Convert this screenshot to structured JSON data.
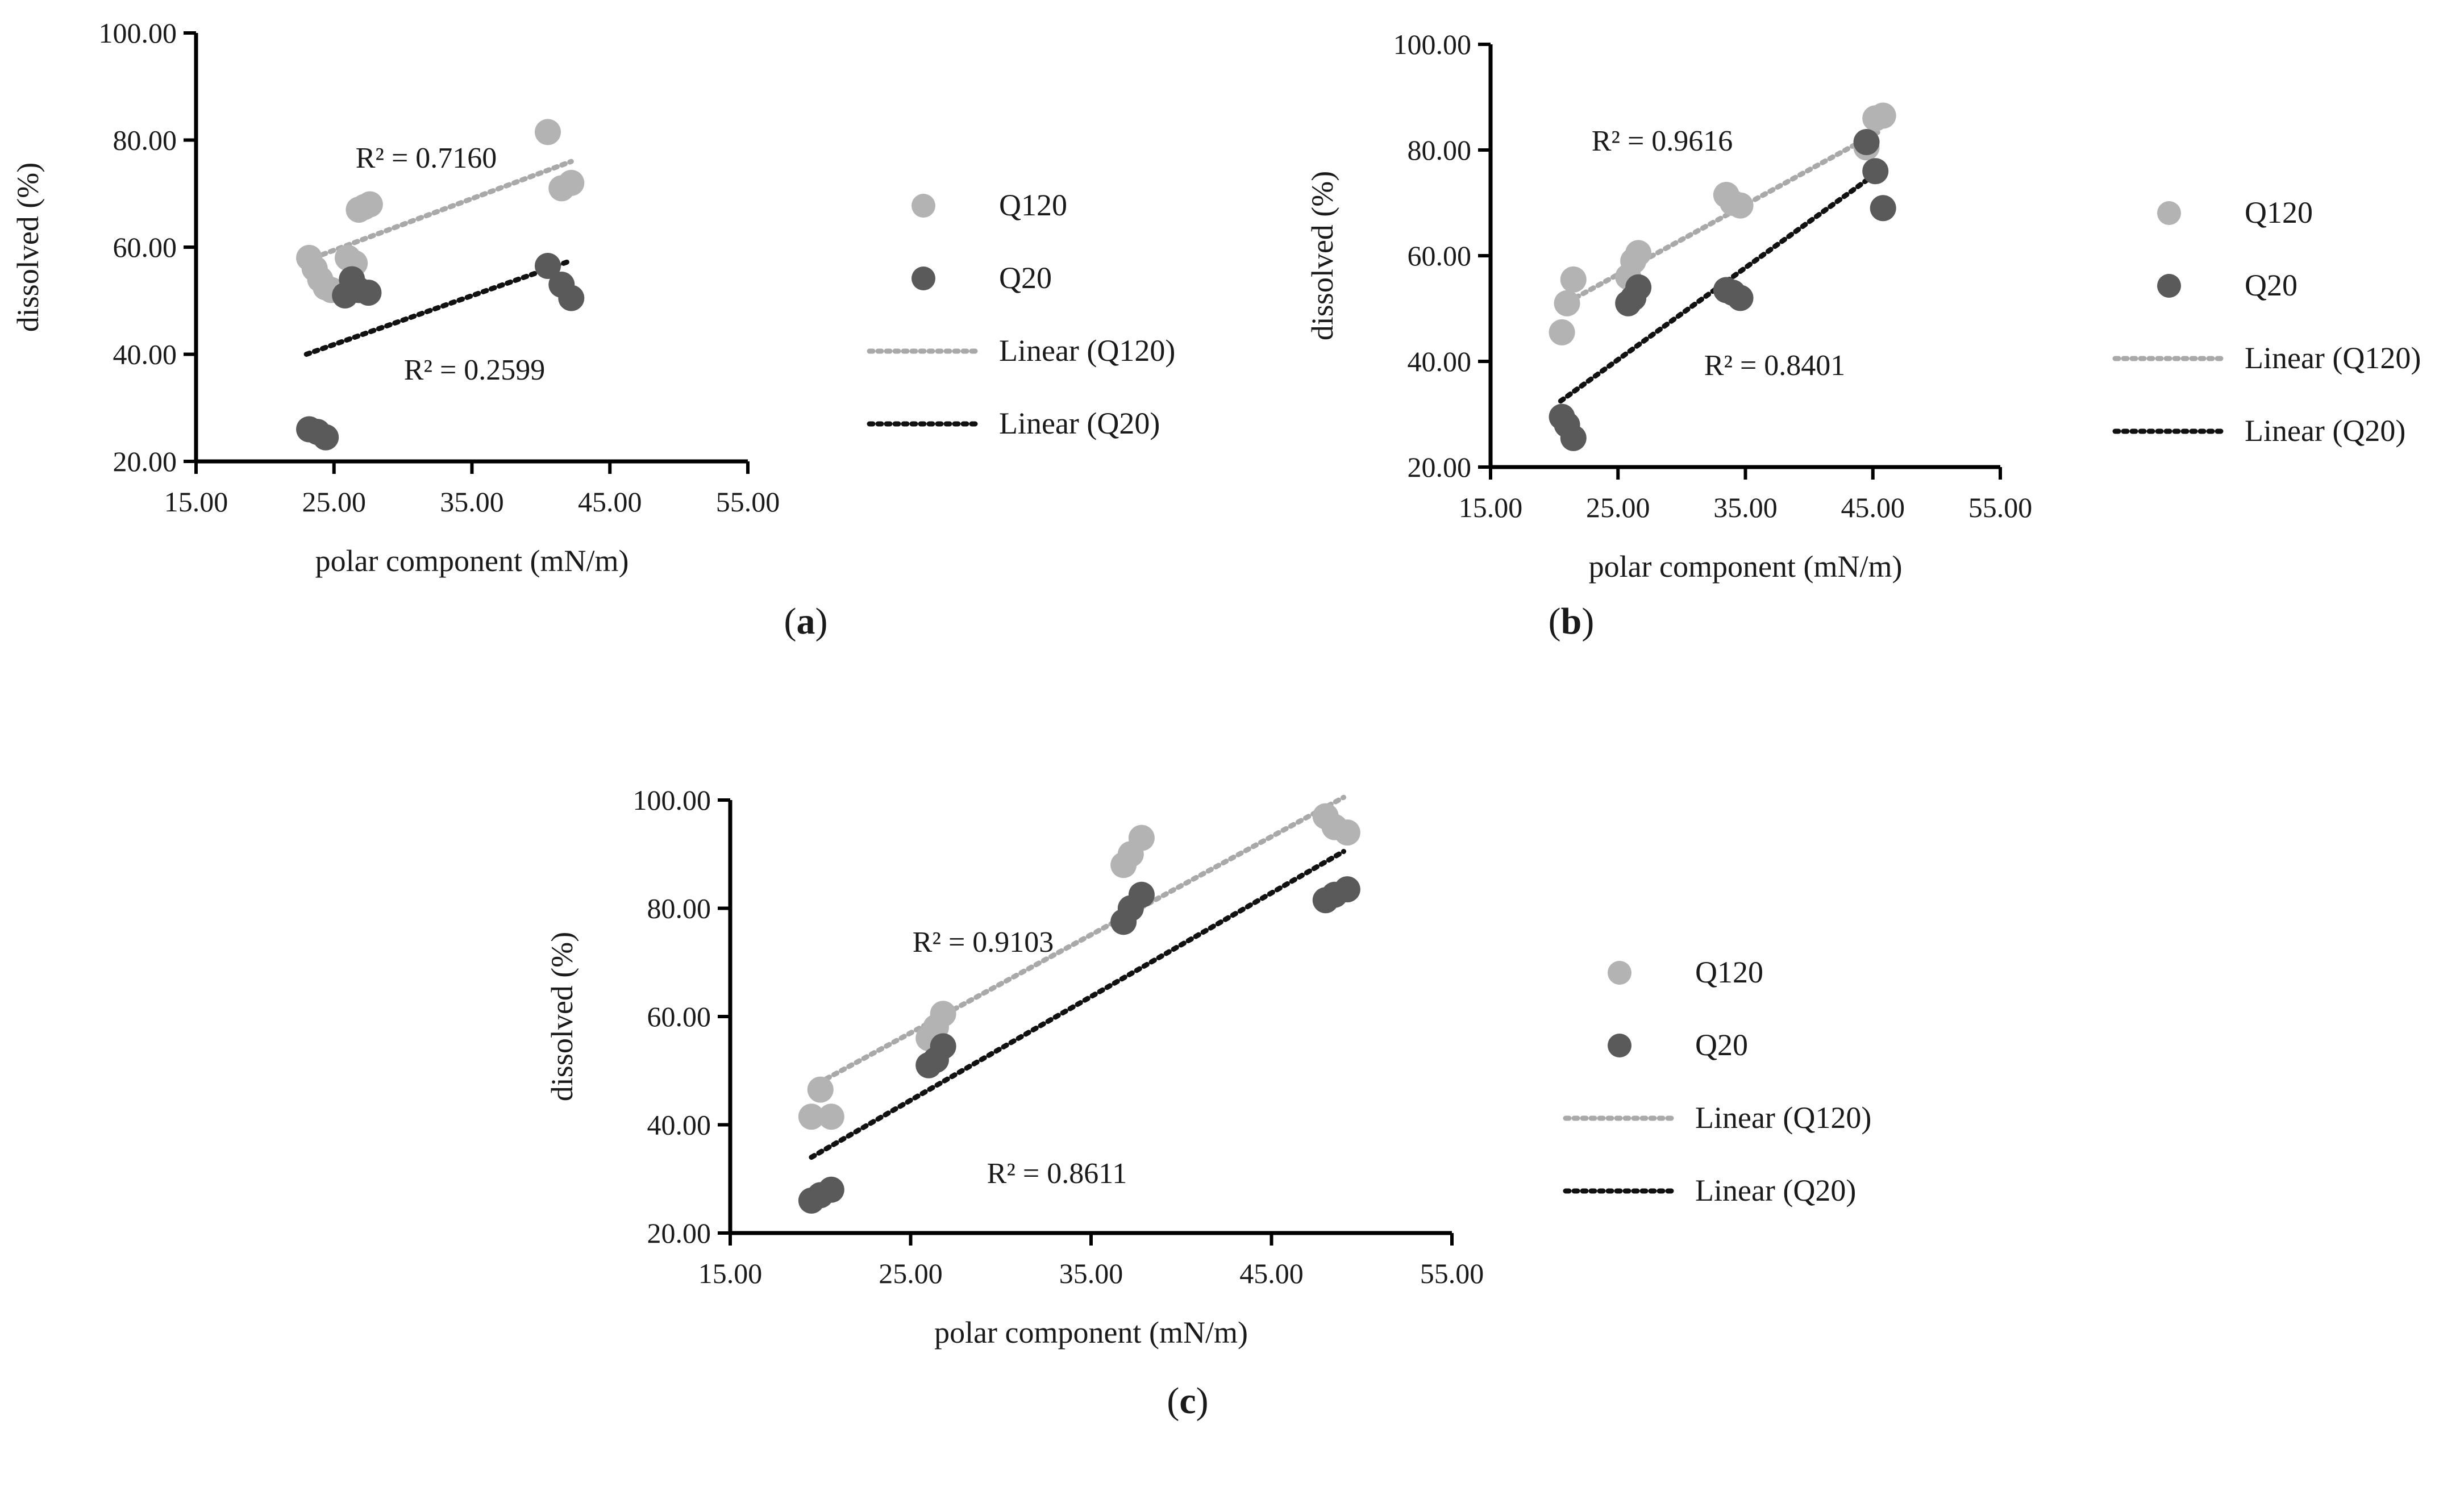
{
  "chart_data": [
    {
      "type": "scatter",
      "panel_label": "a",
      "xlabel": "polar component (mN/m)",
      "ylabel": "dissolved (%)",
      "xlim": [
        15,
        55
      ],
      "ylim": [
        20,
        100
      ],
      "xticks": [
        "15.00",
        "25.00",
        "35.00",
        "45.00",
        "55.00"
      ],
      "yticks": [
        "20.00",
        "40.00",
        "60.00",
        "80.00",
        "100.00"
      ],
      "grid": false,
      "legend_position": "right",
      "series": [
        {
          "name": "Q120",
          "color": "#b3b3b3",
          "points": [
            [
              23.2,
              58
            ],
            [
              23.6,
              56
            ],
            [
              24.0,
              54
            ],
            [
              24.4,
              52.5
            ],
            [
              24.8,
              52
            ],
            [
              26.0,
              58
            ],
            [
              26.5,
              57
            ],
            [
              26.8,
              67
            ],
            [
              27.2,
              67.5
            ],
            [
              27.6,
              68
            ],
            [
              40.5,
              81.5
            ],
            [
              41.5,
              71
            ],
            [
              42.2,
              72
            ]
          ],
          "trend": {
            "name": "Linear (Q120)",
            "x": [
              23.0,
              42.2
            ],
            "y": [
              57.5,
              76.0
            ],
            "r2_text": "R² = 0.7160"
          }
        },
        {
          "name": "Q20",
          "color": "#5a5a5a",
          "points": [
            [
              23.2,
              26
            ],
            [
              23.8,
              25.5
            ],
            [
              24.4,
              24.5
            ],
            [
              25.8,
              51
            ],
            [
              26.3,
              54
            ],
            [
              26.8,
              52
            ],
            [
              27.5,
              51.5
            ],
            [
              40.5,
              56.5
            ],
            [
              41.5,
              53
            ],
            [
              42.2,
              50.5
            ]
          ],
          "trend": {
            "name": "Linear (Q20)",
            "x": [
              23.0,
              42.2
            ],
            "y": [
              40.0,
              57.5
            ],
            "r2_text": "R² = 0.2599"
          }
        }
      ]
    },
    {
      "type": "scatter",
      "panel_label": "b",
      "xlabel": "polar component (mN/m)",
      "ylabel": "dissolved (%)",
      "xlim": [
        15,
        55
      ],
      "ylim": [
        20,
        100
      ],
      "xticks": [
        "15.00",
        "25.00",
        "35.00",
        "45.00",
        "55.00"
      ],
      "yticks": [
        "20.00",
        "40.00",
        "60.00",
        "80.00",
        "100.00"
      ],
      "grid": false,
      "legend_position": "right",
      "series": [
        {
          "name": "Q120",
          "color": "#b3b3b3",
          "points": [
            [
              20.6,
              45.5
            ],
            [
              21.0,
              51
            ],
            [
              21.5,
              55.5
            ],
            [
              25.8,
              56
            ],
            [
              26.2,
              59
            ],
            [
              26.6,
              60.5
            ],
            [
              33.5,
              71.5
            ],
            [
              34.0,
              70
            ],
            [
              34.6,
              69.5
            ],
            [
              44.5,
              80.5
            ],
            [
              45.2,
              86
            ],
            [
              45.8,
              86.5
            ]
          ],
          "trend": {
            "name": "Linear (Q120)",
            "x": [
              20.5,
              45.5
            ],
            "y": [
              50.5,
              83.5
            ],
            "r2_text": "R² = 0.9616"
          }
        },
        {
          "name": "Q20",
          "color": "#5a5a5a",
          "points": [
            [
              20.6,
              29.5
            ],
            [
              21.0,
              28
            ],
            [
              21.5,
              25.5
            ],
            [
              25.8,
              51
            ],
            [
              26.2,
              52
            ],
            [
              26.6,
              54
            ],
            [
              33.5,
              53.5
            ],
            [
              34.0,
              53
            ],
            [
              34.6,
              52
            ],
            [
              44.5,
              81.5
            ],
            [
              45.2,
              76
            ],
            [
              45.8,
              69
            ]
          ],
          "trend": {
            "name": "Linear (Q20)",
            "x": [
              20.5,
              45.5
            ],
            "y": [
              32.5,
              76.0
            ],
            "r2_text": "R² = 0.8401"
          }
        }
      ]
    },
    {
      "type": "scatter",
      "panel_label": "c",
      "xlabel": "polar component (mN/m)",
      "ylabel": "dissolved (%)",
      "xlim": [
        15,
        55
      ],
      "ylim": [
        20,
        100
      ],
      "xticks": [
        "15.00",
        "25.00",
        "35.00",
        "45.00",
        "55.00"
      ],
      "yticks": [
        "20.00",
        "40.00",
        "60.00",
        "80.00",
        "100.00"
      ],
      "grid": false,
      "legend_position": "right",
      "series": [
        {
          "name": "Q120",
          "color": "#b3b3b3",
          "points": [
            [
              19.5,
              41.5
            ],
            [
              20.0,
              46.5
            ],
            [
              20.6,
              41.5
            ],
            [
              26.0,
              56
            ],
            [
              26.4,
              58
            ],
            [
              26.8,
              60.5
            ],
            [
              36.8,
              88
            ],
            [
              37.2,
              90
            ],
            [
              37.8,
              93
            ],
            [
              48.0,
              97
            ],
            [
              48.5,
              95
            ],
            [
              49.2,
              94
            ]
          ],
          "trend": {
            "name": "Linear (Q120)",
            "x": [
              19.5,
              49.0
            ],
            "y": [
              47.0,
              100.5
            ],
            "r2_text": "R² = 0.9103"
          }
        },
        {
          "name": "Q20",
          "color": "#5a5a5a",
          "points": [
            [
              19.5,
              26
            ],
            [
              20.0,
              27
            ],
            [
              20.6,
              28
            ],
            [
              26.0,
              51
            ],
            [
              26.4,
              52
            ],
            [
              26.8,
              54.5
            ],
            [
              36.8,
              77.5
            ],
            [
              37.2,
              80
            ],
            [
              37.8,
              82.5
            ],
            [
              48.0,
              81.5
            ],
            [
              48.5,
              82.5
            ],
            [
              49.2,
              83.5
            ]
          ],
          "trend": {
            "name": "Linear (Q20)",
            "x": [
              19.5,
              49.0
            ],
            "y": [
              34.0,
              90.5
            ],
            "r2_text": "R² = 0.8611"
          }
        }
      ]
    }
  ]
}
